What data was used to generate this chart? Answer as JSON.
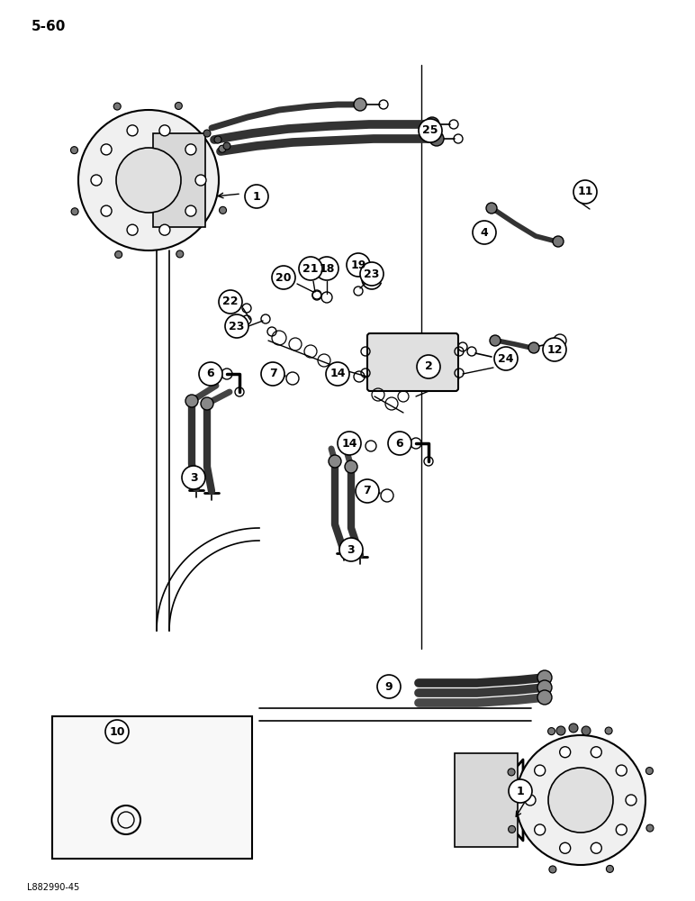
{
  "page_label": "5-60",
  "image_label": "L882990-45",
  "background_color": "#ffffff",
  "line_color": "#000000",
  "figsize": [
    7.72,
    10.0
  ],
  "dpi": 100
}
